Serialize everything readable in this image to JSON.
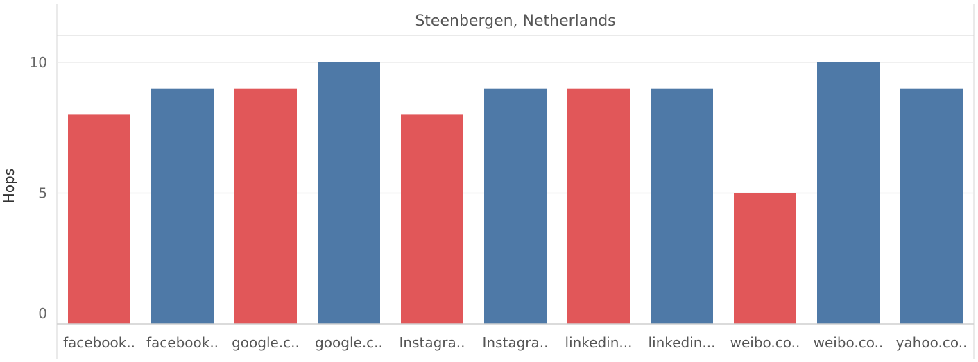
{
  "chart_data": {
    "type": "bar",
    "title": "Steenbergen, Netherlands",
    "xlabel": "",
    "ylabel": "Hops",
    "ylim": [
      0,
      12
    ],
    "yticks": [
      0,
      5,
      10
    ],
    "categories": [
      "facebook..",
      "facebook..",
      "google.c..",
      "google.c..",
      "Instagra..",
      "Instagra..",
      "linkedin...",
      "linkedin...",
      "weibo.co..",
      "weibo.co..",
      "yahoo.co.."
    ],
    "values": [
      8,
      9,
      9,
      10,
      8,
      9,
      9,
      9,
      5,
      10,
      9
    ],
    "bar_colors": [
      "#e15759",
      "#4e79a7",
      "#e15759",
      "#4e79a7",
      "#e15759",
      "#4e79a7",
      "#e15759",
      "#4e79a7",
      "#e15759",
      "#4e79a7",
      "#4e79a7"
    ],
    "grid": true
  }
}
